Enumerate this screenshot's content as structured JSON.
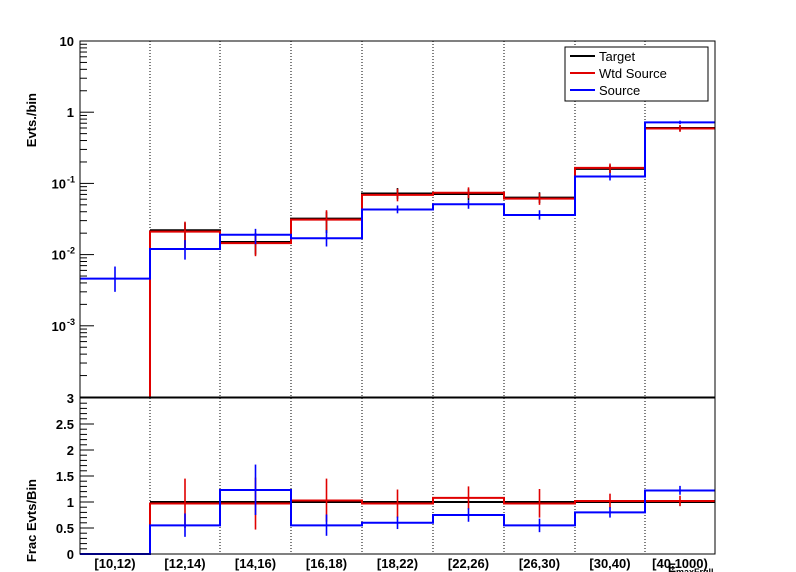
{
  "chart_data": {
    "type": "histogram",
    "categories": [
      "[10,12)",
      "[12,14)",
      "[14,16)",
      "[16,18)",
      "[18,22)",
      "[22,26)",
      "[26,30)",
      "[30,40)",
      "[40,1000)"
    ],
    "xlabel": "E_{maxFrgll}",
    "colors": {
      "target": "#000000",
      "wtd_source": "#e00000",
      "source": "#0000ff"
    },
    "top": {
      "ylabel": "Evts./bin",
      "yscale": "log",
      "ylim": [
        0.0001,
        10
      ],
      "yticks": [
        {
          "value": 10,
          "label": "10"
        },
        {
          "value": 1,
          "label": "1"
        },
        {
          "value": 0.1,
          "label": "10",
          "exp": "-1"
        },
        {
          "value": 0.01,
          "label": "10",
          "exp": "-2"
        },
        {
          "value": 0.001,
          "label": "10",
          "exp": "-3"
        }
      ],
      "legend_position": "top-right",
      "series": [
        {
          "name": "Target",
          "color": "#000000",
          "values": [
            null,
            0.022,
            0.015,
            0.032,
            0.072,
            0.071,
            0.063,
            0.16,
            0.6
          ],
          "errors": [
            null,
            [
              0.012,
              0.028
            ],
            [
              0.01,
              0.02
            ],
            [
              0.02,
              0.04
            ],
            [
              0.06,
              0.086
            ],
            [
              0.058,
              0.084
            ],
            [
              0.053,
              0.075
            ],
            [
              0.14,
              0.18
            ],
            [
              0.55,
              0.65
            ]
          ]
        },
        {
          "name": "Wtd Source",
          "color": "#e00000",
          "values": [
            null,
            0.021,
            0.0145,
            0.031,
            0.069,
            0.074,
            0.061,
            0.165,
            0.59
          ],
          "errors": [
            null,
            [
              0.012,
              0.029
            ],
            [
              0.0095,
              0.02
            ],
            [
              0.022,
              0.042
            ],
            [
              0.056,
              0.084
            ],
            [
              0.062,
              0.088
            ],
            [
              0.05,
              0.073
            ],
            [
              0.14,
              0.19
            ],
            [
              0.53,
              0.66
            ]
          ]
        },
        {
          "name": "Source",
          "color": "#0000ff",
          "values": [
            0.0046,
            0.012,
            0.019,
            0.017,
            0.043,
            0.051,
            0.036,
            0.125,
            0.72
          ],
          "errors": [
            [
              0.003,
              0.0068
            ],
            [
              0.0085,
              0.016
            ],
            [
              0.014,
              0.023
            ],
            [
              0.013,
              0.022
            ],
            [
              0.038,
              0.049
            ],
            [
              0.044,
              0.058
            ],
            [
              0.031,
              0.042
            ],
            [
              0.11,
              0.14
            ],
            [
              0.68,
              0.76
            ]
          ]
        }
      ]
    },
    "bottom": {
      "ylabel": "Frac Evts/Bin",
      "ylim": [
        0,
        3
      ],
      "yticks": [
        "0",
        "0.5",
        "1",
        "1.5",
        "2",
        "2.5",
        "3"
      ],
      "series": [
        {
          "name": "Target",
          "color": "#000000",
          "values": [
            null,
            1.0,
            1.0,
            1.0,
            1.0,
            1.0,
            1.0,
            1.0,
            1.0
          ],
          "errors": [
            null,
            null,
            null,
            null,
            null,
            null,
            null,
            null,
            null
          ]
        },
        {
          "name": "Wtd Source",
          "color": "#e00000",
          "values": [
            0,
            0.97,
            0.97,
            1.03,
            0.97,
            1.08,
            0.97,
            1.02,
            1.02
          ],
          "errors": [
            null,
            [
              0.5,
              1.45
            ],
            [
              0.47,
              1.47
            ],
            [
              0.62,
              1.45
            ],
            [
              0.7,
              1.24
            ],
            [
              0.86,
              1.3
            ],
            [
              0.7,
              1.25
            ],
            [
              0.88,
              1.16
            ],
            [
              0.92,
              1.12
            ]
          ]
        },
        {
          "name": "Source",
          "color": "#0000ff",
          "values": [
            0,
            0.55,
            1.23,
            0.55,
            0.6,
            0.75,
            0.55,
            0.8,
            1.22
          ],
          "errors": [
            null,
            [
              0.33,
              0.78
            ],
            [
              0.75,
              1.72
            ],
            [
              0.35,
              0.76
            ],
            [
              0.48,
              0.72
            ],
            [
              0.62,
              0.88
            ],
            [
              0.42,
              0.68
            ],
            [
              0.7,
              0.9
            ],
            [
              1.14,
              1.31
            ]
          ]
        }
      ]
    }
  }
}
